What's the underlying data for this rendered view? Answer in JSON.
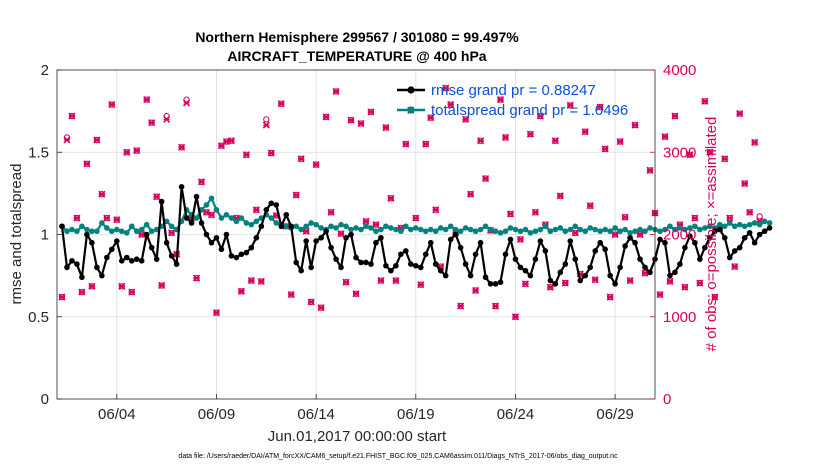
{
  "chart_data": {
    "type": "line",
    "title_line1": "Northern Hemisphere 299567 / 301080 = 99.497%",
    "title_line2": "AIRCRAFT_TEMPERATURE @ 400 hPa",
    "xlabel": "Jun.01,2017 00:00:00 start",
    "ylabel_left": "rmse and totalspread",
    "ylabel_right": "# of obs: o=possible; ×=assimilated",
    "ylim_left": [
      0,
      2
    ],
    "ylim_right": [
      0,
      4000
    ],
    "yticks_left": [
      "0",
      "0.5",
      "1",
      "1.5",
      "2"
    ],
    "yticks_right": [
      "0",
      "1000",
      "2000",
      "3000",
      "4000"
    ],
    "xlim_days": [
      1.0,
      31.0
    ],
    "xticks": [
      {
        "label": "06/04",
        "day": 4
      },
      {
        "label": "06/09",
        "day": 9
      },
      {
        "label": "06/14",
        "day": 14
      },
      {
        "label": "06/19",
        "day": 19
      },
      {
        "label": "06/24",
        "day": 24
      },
      {
        "label": "06/29",
        "day": 29
      }
    ],
    "grid": true,
    "legend_position": "top-right",
    "footer": "data file: /Users/raeder/DAI/ATM_forcXX/CAM6_setup/f.e21.FHIST_BGC.f09_025.CAM6assim.011/Diags_NTrS_2017-06/obs_diag_output.nc",
    "colors": {
      "rmse": "#000000",
      "totalspread": "#00827f",
      "obs": "#d6005c",
      "legend_text": "#0a4fd8"
    },
    "series": [
      {
        "name": "rmse",
        "legend": "rmse grand pr = 0.88247",
        "start_day": 1.25,
        "step_days": 0.25,
        "values": [
          1.05,
          0.8,
          0.84,
          0.82,
          0.74,
          1.0,
          0.95,
          0.8,
          0.75,
          0.86,
          0.91,
          0.96,
          0.84,
          0.86,
          0.84,
          0.85,
          0.84,
          1.0,
          0.92,
          0.85,
          1.2,
          0.95,
          0.87,
          0.82,
          1.29,
          1.1,
          1.07,
          1.23,
          1.07,
          1.0,
          0.95,
          0.98,
          0.91,
          1.0,
          0.87,
          0.86,
          0.88,
          0.89,
          0.92,
          0.98,
          1.05,
          1.15,
          1.19,
          1.18,
          1.05,
          1.12,
          1.05,
          0.83,
          0.78,
          0.96,
          0.8,
          0.96,
          0.98,
          1.02,
          0.92,
          0.85,
          0.8,
          0.98,
          1.0,
          0.86,
          0.83,
          0.83,
          0.82,
          0.95,
          0.98,
          0.81,
          0.78,
          0.81,
          0.88,
          0.9,
          0.82,
          0.81,
          0.8,
          0.88,
          0.95,
          0.82,
          0.78,
          0.75,
          0.97,
          1.0,
          0.92,
          0.82,
          0.75,
          0.88,
          0.95,
          0.74,
          0.7,
          0.7,
          0.71,
          0.88,
          0.97,
          0.85,
          0.8,
          0.78,
          0.75,
          0.85,
          0.96,
          0.9,
          0.72,
          0.7,
          0.77,
          0.82,
          0.96,
          0.85,
          0.72,
          0.75,
          0.8,
          0.9,
          0.95,
          0.91,
          0.75,
          0.7,
          0.8,
          0.93,
          0.98,
          0.95,
          0.85,
          0.8,
          0.77,
          0.85,
          0.97,
          0.95,
          0.75,
          0.77,
          0.82,
          0.92,
          0.99,
          0.95,
          0.85,
          0.92,
          0.98,
          1.02,
          1.03,
          0.98,
          0.86,
          0.9,
          0.92,
          0.98,
          1.01,
          0.95,
          1.0,
          1.02,
          1.04
        ]
      },
      {
        "name": "totalspread",
        "legend": "totalspread grand pr = 1.0496",
        "start_day": 1.25,
        "step_days": 0.25,
        "values": [
          1.05,
          1.02,
          1.03,
          1.02,
          1.05,
          1.03,
          1.02,
          1.02,
          1.07,
          1.04,
          1.02,
          1.03,
          1.02,
          1.01,
          1.05,
          1.02,
          1.03,
          1.06,
          1.02,
          1.03,
          1.05,
          1.08,
          1.05,
          1.03,
          1.08,
          1.15,
          1.12,
          1.1,
          1.15,
          1.18,
          1.22,
          1.15,
          1.1,
          1.12,
          1.1,
          1.08,
          1.1,
          1.07,
          1.06,
          1.08,
          1.1,
          1.12,
          1.1,
          1.07,
          1.06,
          1.05,
          1.04,
          1.05,
          1.03,
          1.05,
          1.07,
          1.06,
          1.04,
          1.03,
          1.05,
          1.04,
          1.06,
          1.05,
          1.03,
          1.04,
          1.03,
          1.05,
          1.04,
          1.02,
          1.03,
          1.05,
          1.04,
          1.03,
          1.02,
          1.05,
          1.03,
          1.04,
          1.03,
          1.02,
          1.03,
          1.02,
          1.04,
          1.03,
          1.05,
          1.03,
          1.02,
          1.04,
          1.03,
          1.02,
          1.03,
          1.05,
          1.03,
          1.02,
          1.01,
          1.02,
          1.04,
          1.03,
          1.02,
          1.03,
          1.01,
          1.02,
          1.03,
          1.05,
          1.02,
          1.03,
          1.04,
          1.02,
          1.03,
          1.05,
          1.03,
          1.02,
          1.04,
          1.03,
          1.02,
          1.03,
          1.02,
          1.04,
          1.02,
          1.03,
          1.01,
          1.02,
          1.03,
          1.02,
          1.04,
          1.03,
          1.02,
          1.03,
          1.05,
          1.03,
          1.04,
          1.03,
          1.04,
          1.05,
          1.03,
          1.04,
          1.05,
          1.04,
          1.06,
          1.05,
          1.07,
          1.05,
          1.06,
          1.05,
          1.06,
          1.07,
          1.06,
          1.08,
          1.07
        ]
      },
      {
        "name": "obs_possible",
        "marker": "circle",
        "start_day": 1.25,
        "step_days": 0.25,
        "values": [
          1240,
          3180,
          3440,
          2200,
          1300,
          2860,
          1370,
          3150,
          2490,
          2200,
          3580,
          2180,
          1370,
          3000,
          1300,
          3020,
          2000,
          3640,
          3360,
          2460,
          1380,
          3440,
          2020,
          1760,
          3060,
          3640,
          2200,
          1470,
          2640,
          2270,
          2240,
          1050,
          3080,
          3130,
          3140,
          2200,
          1310,
          2970,
          1440,
          2300,
          1430,
          3400,
          2990,
          2230,
          3590,
          2100,
          1270,
          2480,
          2920,
          2040,
          1180,
          2850,
          1110,
          3430,
          2270,
          3740,
          2010,
          1420,
          3390,
          1280,
          3350,
          2160,
          3490,
          2120,
          1440,
          3300,
          2440,
          1440,
          2080,
          3100,
          3510,
          2200,
          1390,
          3100,
          3420,
          2300,
          1610,
          3780,
          3580,
          2020,
          1130,
          3400,
          2490,
          1320,
          3140,
          2680,
          2050,
          1130,
          3640,
          3180,
          2250,
          1000,
          1940,
          1400,
          3220,
          2270,
          3440,
          2120,
          1360,
          3140,
          2470,
          1410,
          3570,
          2020,
          1520,
          3250,
          2350,
          1450,
          3550,
          3040,
          1240,
          2000,
          3130,
          2210,
          1440,
          3330,
          2000,
          1530,
          2780,
          2260,
          1270,
          3190,
          1430,
          3440,
          2120,
          1360,
          2970,
          2200,
          1410,
          3620,
          3000,
          1240,
          2070,
          2920,
          2200,
          1610,
          3470,
          2620,
          2270,
          3120,
          2220
        ]
      },
      {
        "name": "obs_assimilated",
        "marker": "x",
        "start_day": 1.25,
        "step_days": 0.25,
        "values": [
          1240,
          3150,
          3440,
          2200,
          1300,
          2860,
          1370,
          3150,
          2490,
          2200,
          3580,
          2180,
          1370,
          3000,
          1300,
          3020,
          2000,
          3640,
          3360,
          2460,
          1380,
          3400,
          2020,
          1760,
          3060,
          3600,
          2200,
          1470,
          2640,
          2270,
          2240,
          1050,
          3080,
          3130,
          3140,
          2200,
          1310,
          2970,
          1440,
          2300,
          1430,
          3330,
          2990,
          2230,
          3590,
          2100,
          1270,
          2480,
          2920,
          2040,
          1180,
          2850,
          1110,
          3430,
          2270,
          3740,
          2010,
          1420,
          3390,
          1280,
          3350,
          2160,
          3490,
          2120,
          1440,
          3300,
          2440,
          1440,
          2080,
          3100,
          3510,
          2200,
          1390,
          3100,
          3420,
          2300,
          1610,
          3780,
          3580,
          2020,
          1130,
          3400,
          2490,
          1320,
          3140,
          2680,
          2050,
          1130,
          3640,
          3180,
          2250,
          1000,
          1940,
          1400,
          3220,
          2270,
          3440,
          2120,
          1360,
          3140,
          2470,
          1410,
          3570,
          2020,
          1520,
          3250,
          2350,
          1450,
          3550,
          3040,
          1240,
          2000,
          3130,
          2210,
          1440,
          3330,
          2000,
          1530,
          2780,
          2260,
          1270,
          3190,
          1430,
          3440,
          2120,
          1360,
          2970,
          2200,
          1410,
          3620,
          3000,
          1240,
          2070,
          2920,
          2200,
          1610,
          3470,
          2620,
          2270,
          3120,
          2160
        ]
      }
    ]
  }
}
